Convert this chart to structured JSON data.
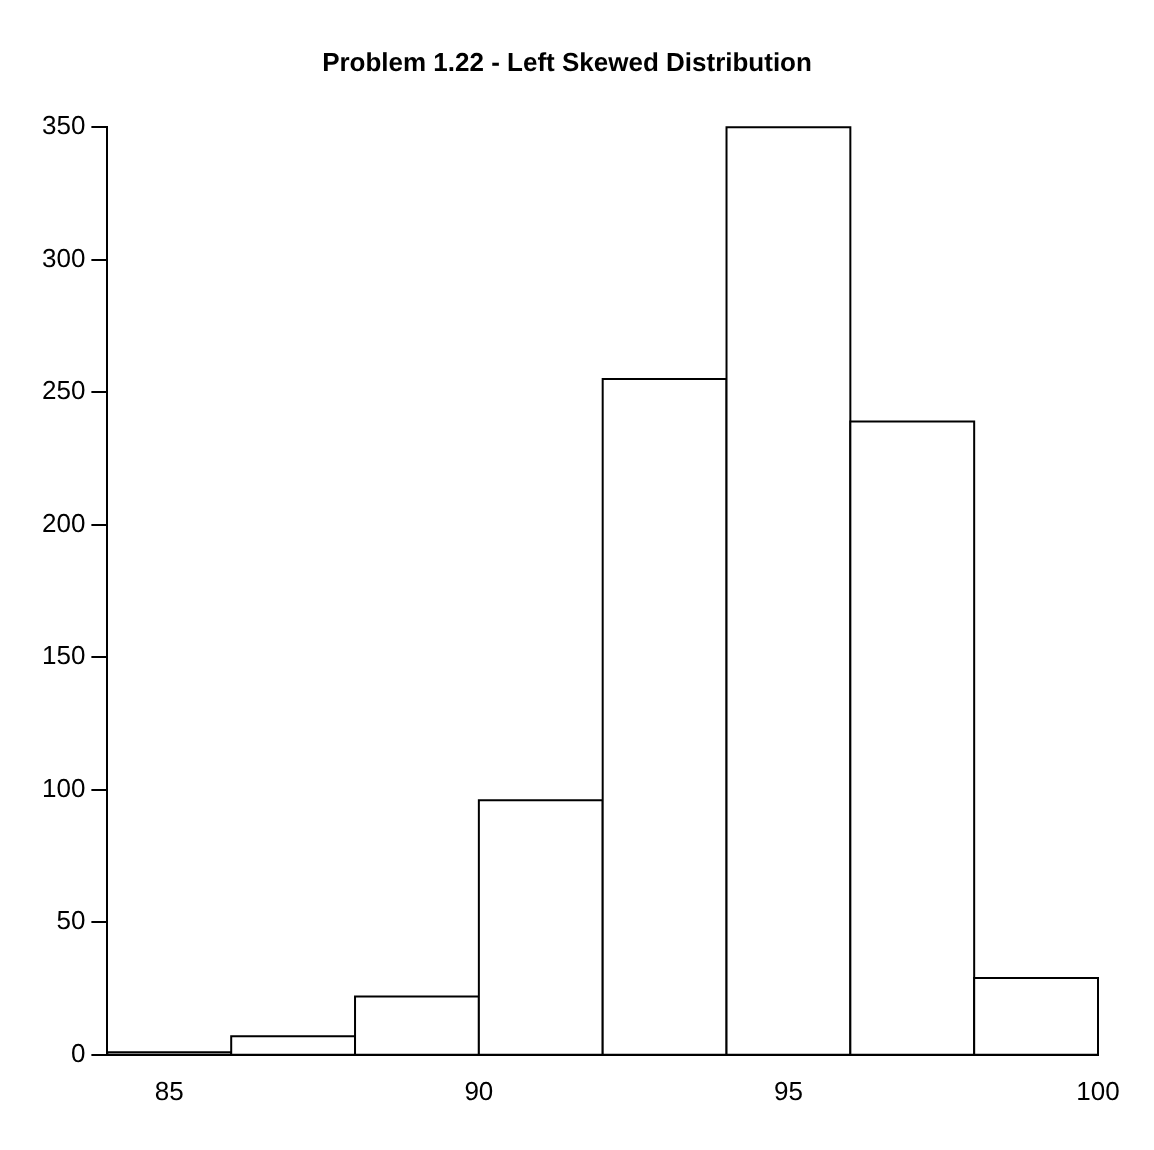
{
  "chart_data": {
    "type": "histogram",
    "title": "Problem 1.22 - Left Skewed Distribution",
    "bins": [
      84,
      86,
      88,
      90,
      92,
      94,
      96,
      98,
      100
    ],
    "values": [
      1,
      7,
      22,
      96,
      255,
      350,
      239,
      29
    ],
    "color": "#ffffff",
    "xlim": [
      84,
      100
    ],
    "xticks": [
      85,
      90,
      95,
      100
    ],
    "ylim": [
      0,
      350
    ],
    "yticks": [
      0,
      50,
      100,
      150,
      200,
      250,
      300,
      350
    ],
    "grid": false,
    "legend": false
  }
}
